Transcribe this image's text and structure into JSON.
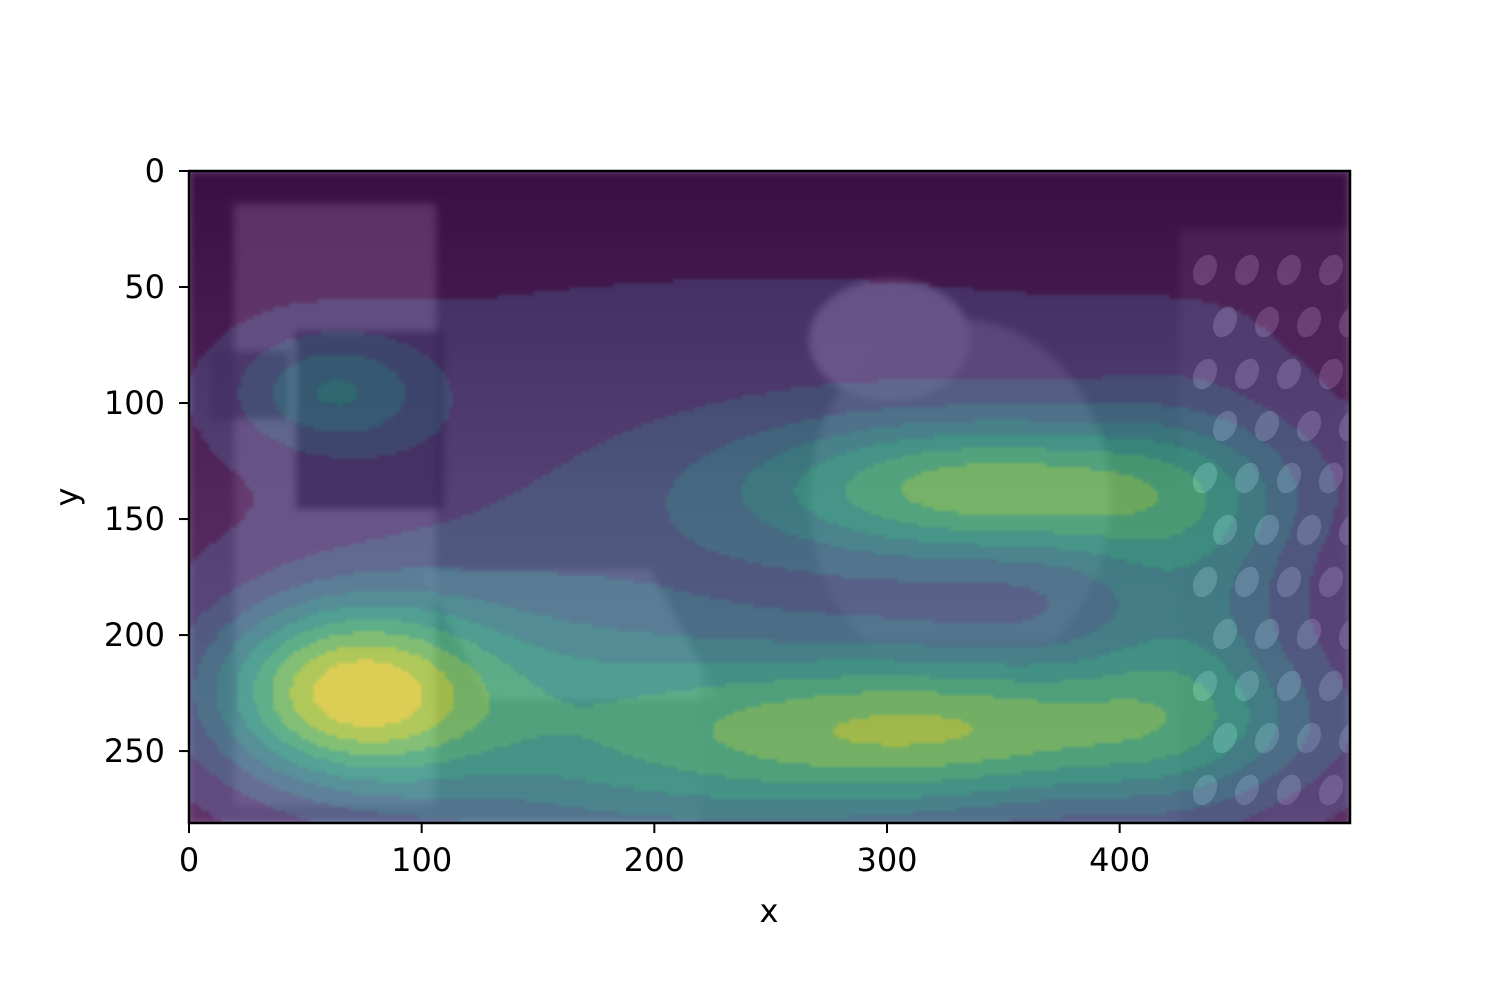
{
  "chart_data": {
    "type": "heatmap",
    "title": "",
    "xlabel": "x",
    "ylabel": "y",
    "xlim": [
      0,
      499
    ],
    "ylim": [
      281,
      0
    ],
    "y_axis_inverted": true,
    "x_ticks": [
      0,
      100,
      200,
      300,
      400
    ],
    "x_tick_labels": [
      "0",
      "100",
      "200",
      "300",
      "400"
    ],
    "y_ticks": [
      0,
      50,
      100,
      150,
      200,
      250
    ],
    "y_tick_labels": [
      "0",
      "50",
      "100",
      "150",
      "200",
      "250"
    ],
    "grid": false,
    "legend": "none",
    "colormap": "viridis",
    "background": "grayscale photograph (two people, a camera and a polka-dot curtain)",
    "contour_levels": 9,
    "hotspots": [
      {
        "x": 68,
        "y": 225,
        "sx": 42,
        "sy": 28,
        "w": 1.0
      },
      {
        "x": 345,
        "y": 137,
        "sx": 75,
        "sy": 22,
        "w": 0.78
      },
      {
        "x": 345,
        "y": 240,
        "sx": 90,
        "sy": 24,
        "w": 0.68
      },
      {
        "x": 430,
        "y": 190,
        "sx": 35,
        "sy": 60,
        "w": 0.38
      },
      {
        "x": 62,
        "y": 95,
        "sx": 30,
        "sy": 18,
        "w": 0.4
      },
      {
        "x": 150,
        "y": 230,
        "sx": 60,
        "sy": 50,
        "w": 0.3
      },
      {
        "x": 250,
        "y": 250,
        "sx": 80,
        "sy": 35,
        "w": 0.35
      },
      {
        "x": 250,
        "y": 140,
        "sx": 200,
        "sy": 130,
        "w": 0.22
      }
    ],
    "colors": {
      "viridis": [
        "#440154",
        "#482878",
        "#3e4989",
        "#31688e",
        "#26828e",
        "#1f9e89",
        "#35b779",
        "#6ece58",
        "#b5de2b",
        "#fde725"
      ]
    }
  }
}
